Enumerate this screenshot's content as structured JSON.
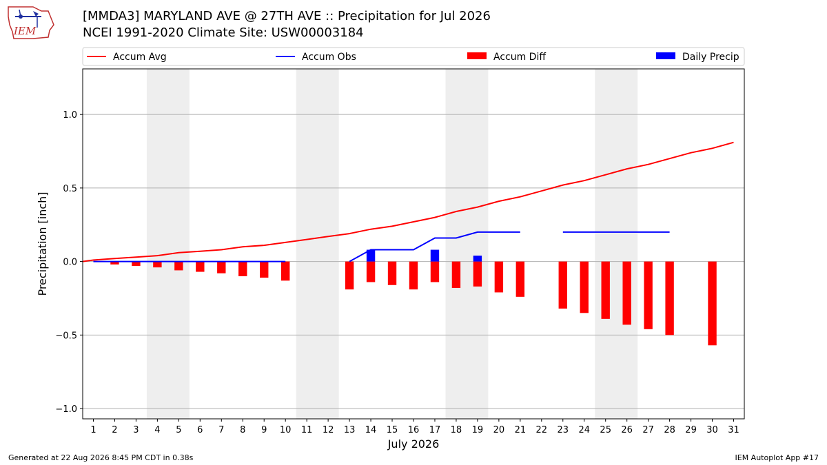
{
  "header": {
    "title": "[MMDA3] MARYLAND AVE @ 27TH AVE :: Precipitation for Jul 2026",
    "subtitle": "NCEI 1991-2020 Climate Site: USW00003184",
    "logo_text": "IEM"
  },
  "footer": {
    "left": "Generated at 22 Aug 2026 8:45 PM CDT in 0.38s",
    "right": "IEM Autoplot App #17"
  },
  "colors": {
    "avg": "#ff0000",
    "obs": "#0000ff",
    "diff": "#ff0000",
    "daily": "#0000ff",
    "weekend_band": "#eeeeee",
    "grid": "#b0b0b0"
  },
  "chart_data": {
    "type": "bar",
    "xlabel": "July 2026",
    "ylabel": "Precipitation [inch]",
    "xlim": [
      0.5,
      31.5
    ],
    "ylim": [
      -1.07,
      1.31
    ],
    "yticks": [
      -1.0,
      -0.5,
      0.0,
      0.5,
      1.0
    ],
    "ytick_labels": [
      "−1.0",
      "−0.5",
      "0.0",
      "0.5",
      "1.0"
    ],
    "days": [
      1,
      2,
      3,
      4,
      5,
      6,
      7,
      8,
      9,
      10,
      11,
      12,
      13,
      14,
      15,
      16,
      17,
      18,
      19,
      20,
      21,
      22,
      23,
      24,
      25,
      26,
      27,
      28,
      29,
      30,
      31
    ],
    "weekend_bands": [
      [
        3.5,
        5.5
      ],
      [
        10.5,
        12.5
      ],
      [
        17.5,
        19.5
      ],
      [
        24.5,
        26.5
      ]
    ],
    "grid": "horizontal",
    "legend_position": "top",
    "legend": [
      "Accum Avg",
      "Accum Obs",
      "Accum Diff",
      "Daily Precip"
    ],
    "series": [
      {
        "name": "Accum Avg",
        "kind": "line",
        "x": [
          0.5,
          1,
          2,
          3,
          4,
          5,
          6,
          7,
          8,
          9,
          10,
          11,
          12,
          13,
          14,
          15,
          16,
          17,
          18,
          19,
          20,
          21,
          22,
          23,
          24,
          25,
          26,
          27,
          28,
          29,
          30,
          31
        ],
        "values": [
          0.0,
          0.01,
          0.02,
          0.03,
          0.04,
          0.06,
          0.07,
          0.08,
          0.1,
          0.11,
          0.13,
          0.15,
          0.17,
          0.19,
          0.22,
          0.24,
          0.27,
          0.3,
          0.34,
          0.37,
          0.41,
          0.44,
          0.48,
          0.52,
          0.55,
          0.59,
          0.63,
          0.66,
          0.7,
          0.74,
          0.77,
          0.81
        ]
      },
      {
        "name": "Accum Obs",
        "kind": "line",
        "segments": [
          {
            "x": [
              1,
              2,
              3,
              4,
              5,
              6,
              7,
              8,
              9,
              10
            ],
            "values": [
              0,
              0,
              0,
              0,
              0,
              0,
              0,
              0,
              0,
              0
            ]
          },
          {
            "x": [
              13,
              14,
              15,
              16,
              17,
              18,
              19,
              20,
              21
            ],
            "values": [
              0,
              0.08,
              0.08,
              0.08,
              0.16,
              0.16,
              0.2,
              0.2,
              0.2
            ]
          },
          {
            "x": [
              23,
              24,
              25,
              26,
              27,
              28
            ],
            "values": [
              0.2,
              0.2,
              0.2,
              0.2,
              0.2,
              0.2
            ]
          }
        ]
      },
      {
        "name": "Accum Diff",
        "kind": "bar",
        "x": [
          2,
          3,
          4,
          5,
          6,
          7,
          8,
          9,
          10,
          13,
          14,
          15,
          16,
          17,
          18,
          19,
          20,
          21,
          23,
          24,
          25,
          26,
          27,
          28,
          30
        ],
        "values": [
          -0.02,
          -0.03,
          -0.04,
          -0.06,
          -0.07,
          -0.08,
          -0.1,
          -0.11,
          -0.13,
          -0.19,
          -0.14,
          -0.16,
          -0.19,
          -0.14,
          -0.18,
          -0.17,
          -0.21,
          -0.24,
          -0.32,
          -0.35,
          -0.39,
          -0.43,
          -0.46,
          -0.5,
          -0.57
        ]
      },
      {
        "name": "Daily Precip",
        "kind": "bar",
        "x": [
          14,
          17,
          19
        ],
        "values": [
          0.08,
          0.08,
          0.04
        ]
      }
    ]
  }
}
